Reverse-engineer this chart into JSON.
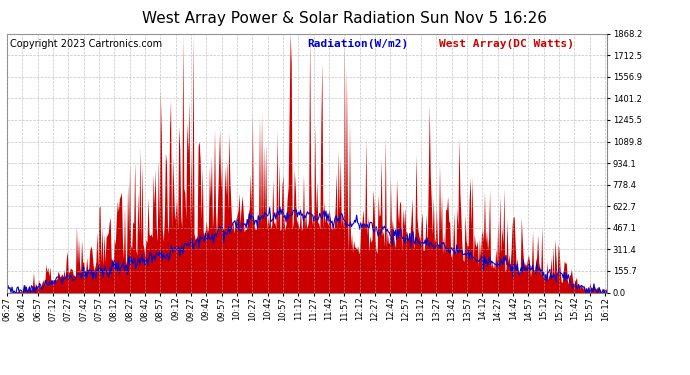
{
  "title": "West Array Power & Solar Radiation Sun Nov 5 16:26",
  "copyright": "Copyright 2023 Cartronics.com",
  "legend_radiation": "Radiation(W/m2)",
  "legend_west_array": "West Array(DC Watts)",
  "bg_color": "#ffffff",
  "plot_bg_color": "#ffffff",
  "radiation_color": "#0000cc",
  "power_color": "#cc0000",
  "power_fill_color": "#cc0000",
  "grid_color": "#aaaaaa",
  "yticks": [
    0.0,
    155.7,
    311.4,
    467.1,
    622.7,
    778.4,
    934.1,
    1089.8,
    1245.5,
    1401.2,
    1556.9,
    1712.5,
    1868.2
  ],
  "ymax": 1868.2,
  "ymin": 0.0,
  "title_fontsize": 11,
  "axis_fontsize": 6,
  "legend_fontsize": 8,
  "copyright_fontsize": 7
}
